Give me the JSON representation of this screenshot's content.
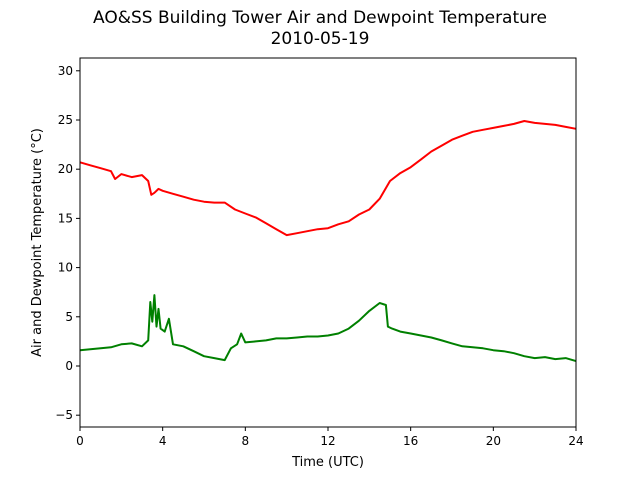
{
  "chart_data": {
    "type": "line",
    "title": "AO&SS Building Tower Air and Dewpoint Temperature",
    "subtitle": "2010-05-19",
    "xlabel": "Time (UTC)",
    "ylabel": "Air and Dewpoint Temperature (°C)",
    "xlim": [
      0,
      24
    ],
    "ylim": [
      -6.2,
      31.3
    ],
    "xticks": [
      0,
      4,
      8,
      12,
      16,
      20,
      24
    ],
    "yticks": [
      -5,
      0,
      5,
      10,
      15,
      20,
      25,
      30
    ],
    "grid": false,
    "series": [
      {
        "color": "#ff0000",
        "x": [
          0,
          0.5,
          1.0,
          1.5,
          1.7,
          2.0,
          2.5,
          3.0,
          3.3,
          3.45,
          3.6,
          3.8,
          4.0,
          4.5,
          5.0,
          5.5,
          6.0,
          6.5,
          7.0,
          7.5,
          8.0,
          8.5,
          9.0,
          9.5,
          10.0,
          10.5,
          11.0,
          11.5,
          12.0,
          12.5,
          13.0,
          13.5,
          14.0,
          14.5,
          15.0,
          15.5,
          16.0,
          16.5,
          17.0,
          17.5,
          18.0,
          18.5,
          19.0,
          19.5,
          20.0,
          20.5,
          21.0,
          21.5,
          22.0,
          22.5,
          23.0,
          23.5,
          24.0
        ],
        "values": [
          20.7,
          20.4,
          20.1,
          19.8,
          19.0,
          19.5,
          19.2,
          19.4,
          18.8,
          17.4,
          17.6,
          18.0,
          17.8,
          17.5,
          17.2,
          16.9,
          16.7,
          16.6,
          16.6,
          15.9,
          15.5,
          15.1,
          14.5,
          13.9,
          13.3,
          13.5,
          13.7,
          13.9,
          14.0,
          14.4,
          14.7,
          15.4,
          15.9,
          17.0,
          18.8,
          19.6,
          20.2,
          21.0,
          21.8,
          22.4,
          23.0,
          23.4,
          23.8,
          24.0,
          24.2,
          24.4,
          24.6,
          24.9,
          24.7,
          24.6,
          24.5,
          24.3,
          24.1
        ]
      },
      {
        "color": "#008000",
        "x": [
          0,
          0.5,
          1.0,
          1.5,
          2.0,
          2.5,
          3.0,
          3.3,
          3.4,
          3.5,
          3.6,
          3.7,
          3.8,
          3.9,
          4.1,
          4.3,
          4.5,
          5.0,
          5.5,
          6.0,
          6.5,
          7.0,
          7.3,
          7.6,
          7.8,
          8.0,
          8.5,
          9.0,
          9.5,
          10.0,
          10.5,
          11.0,
          11.5,
          12.0,
          12.5,
          13.0,
          13.5,
          14.0,
          14.5,
          14.8,
          14.9,
          15.1,
          15.5,
          16.0,
          16.5,
          17.0,
          17.5,
          18.0,
          18.5,
          19.0,
          19.5,
          20.0,
          20.5,
          21.0,
          21.5,
          22.0,
          22.5,
          23.0,
          23.5,
          24.0
        ],
        "values": [
          1.6,
          1.7,
          1.8,
          1.9,
          2.2,
          2.3,
          2.0,
          2.6,
          6.5,
          4.5,
          7.2,
          4.0,
          5.8,
          3.8,
          3.5,
          4.8,
          2.2,
          2.0,
          1.5,
          1.0,
          0.8,
          0.6,
          1.8,
          2.2,
          3.3,
          2.4,
          2.5,
          2.6,
          2.8,
          2.8,
          2.9,
          3.0,
          3.0,
          3.1,
          3.3,
          3.8,
          4.6,
          5.6,
          6.4,
          6.2,
          4.0,
          3.8,
          3.5,
          3.3,
          3.1,
          2.9,
          2.6,
          2.3,
          2.0,
          1.9,
          1.8,
          1.6,
          1.5,
          1.3,
          1.0,
          0.8,
          0.9,
          0.7,
          0.8,
          0.5
        ]
      }
    ]
  }
}
